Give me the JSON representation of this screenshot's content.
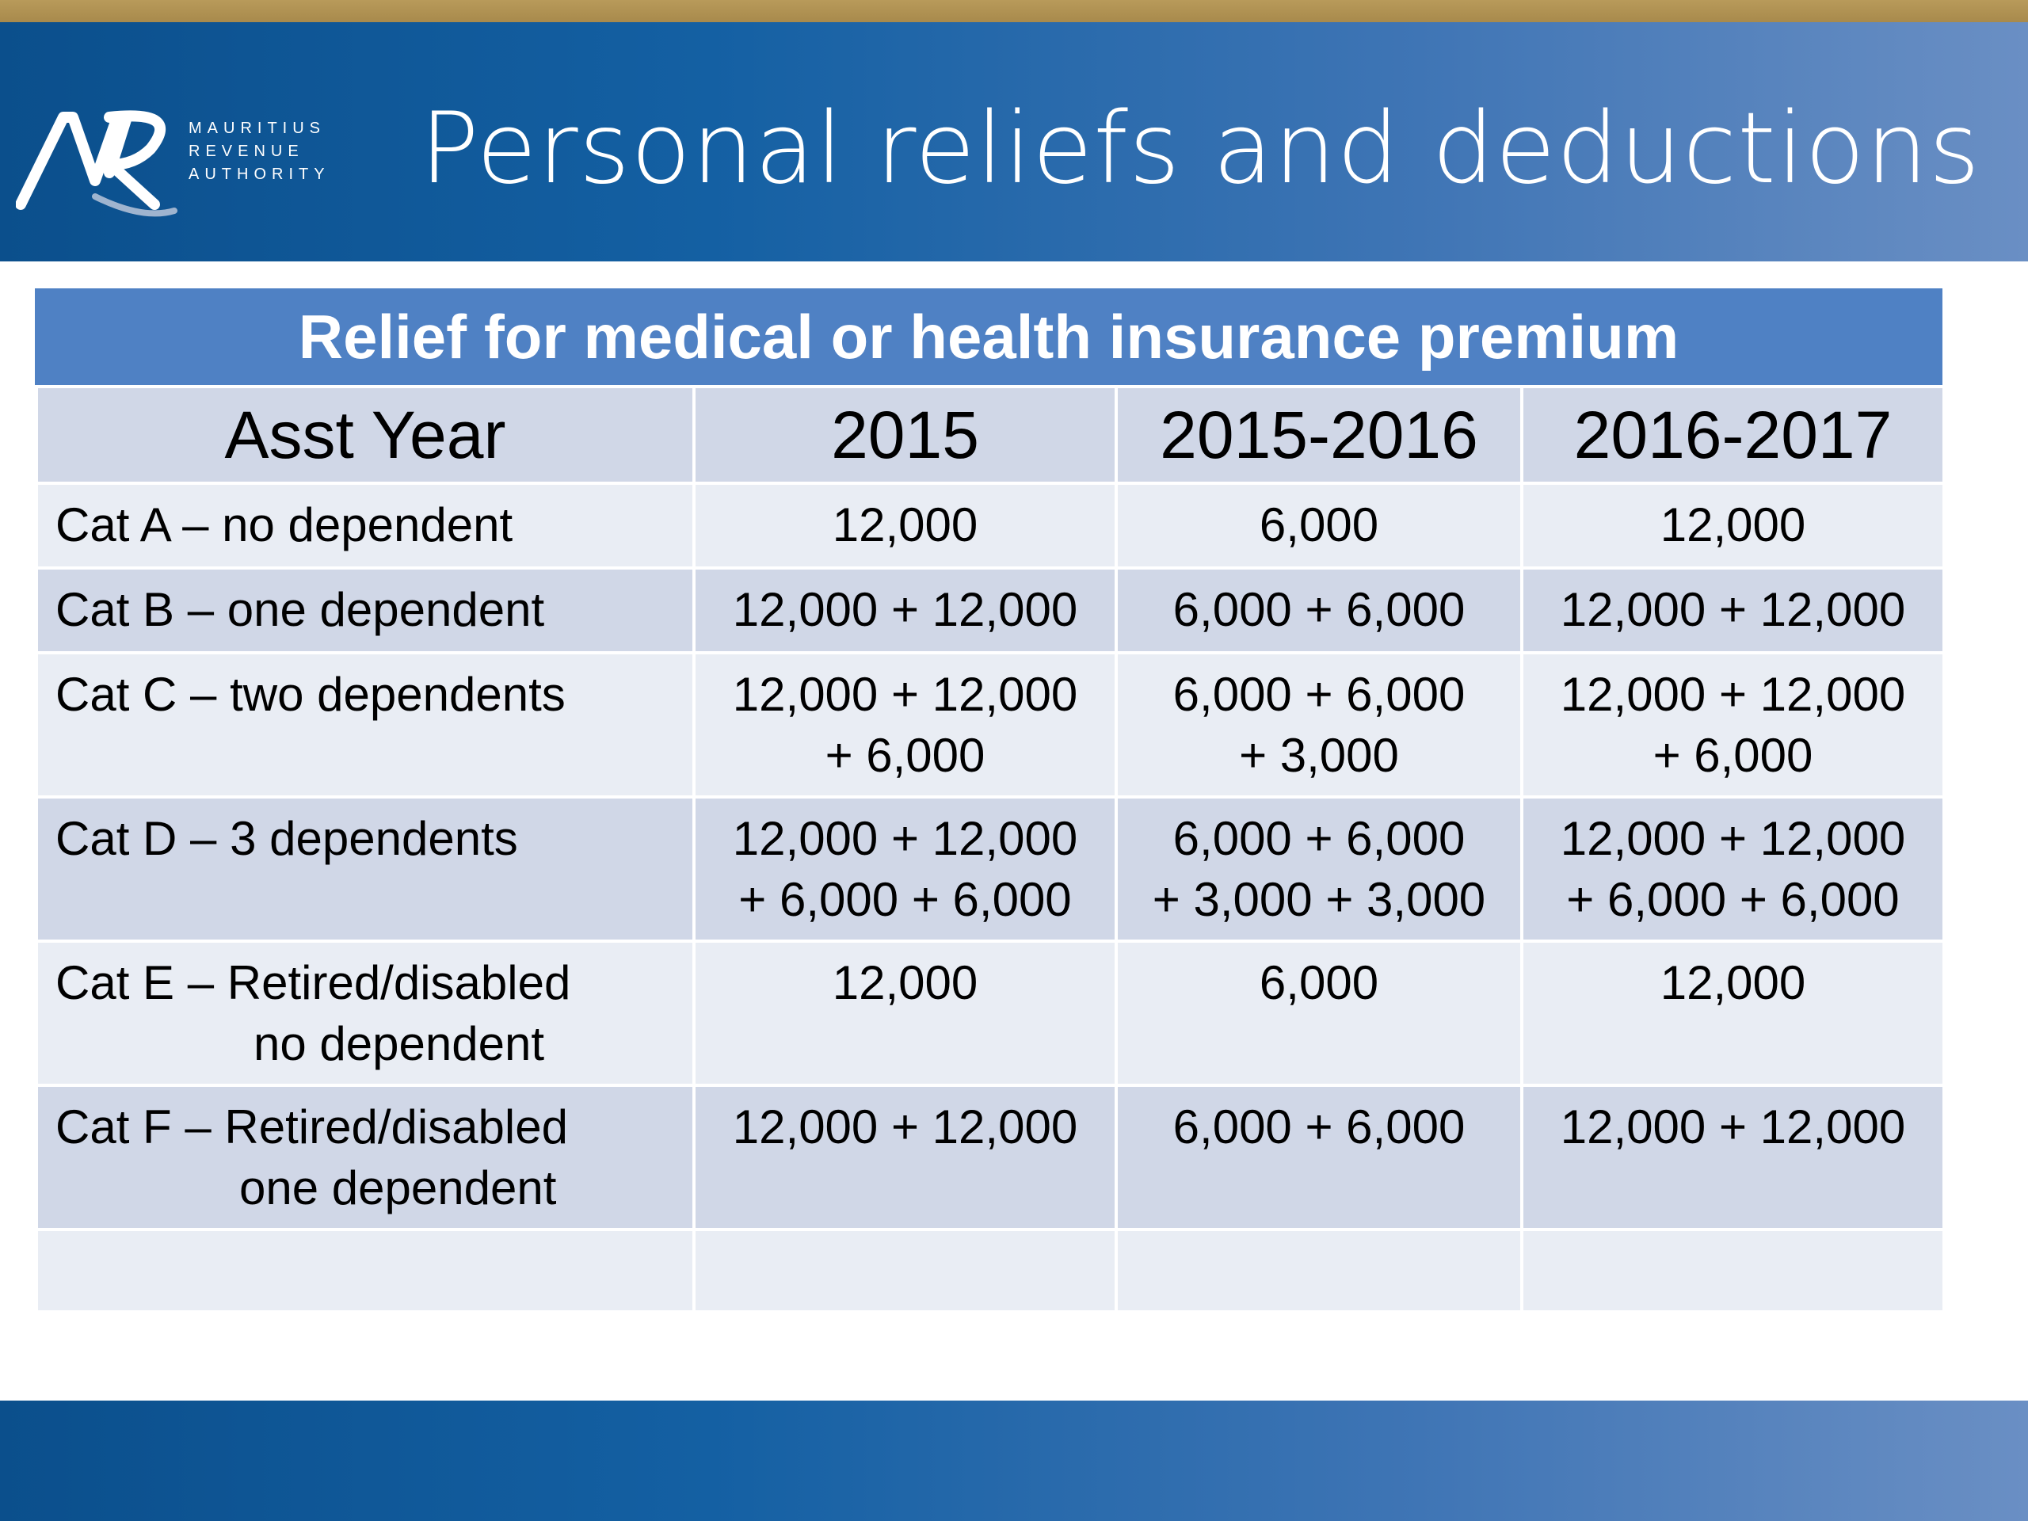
{
  "header": {
    "logo": {
      "icon": "mra-logo-icon",
      "lines": [
        "MAURITIUS",
        "REVENUE",
        "AUTHORITY"
      ]
    },
    "title": "Personal reliefs and deductions"
  },
  "table": {
    "caption": "Relief for medical or health insurance premium",
    "headers": [
      "Asst Year",
      "2015",
      "2015-2016",
      "2016-2017"
    ],
    "rows": [
      {
        "label": [
          "Cat A – no dependent"
        ],
        "cells": [
          [
            "12,000"
          ],
          [
            "6,000"
          ],
          [
            "12,000"
          ]
        ]
      },
      {
        "label": [
          "Cat B – one dependent"
        ],
        "cells": [
          [
            "12,000 + 12,000"
          ],
          [
            "6,000 + 6,000"
          ],
          [
            "12,000 + 12,000"
          ]
        ]
      },
      {
        "label": [
          "Cat C – two dependents"
        ],
        "cells": [
          [
            "12,000 + 12,000",
            "+ 6,000"
          ],
          [
            "6,000 + 6,000",
            "+ 3,000"
          ],
          [
            "12,000 + 12,000",
            "+ 6,000"
          ]
        ]
      },
      {
        "label": [
          "Cat D – 3 dependents"
        ],
        "cells": [
          [
            "12,000 + 12,000",
            "+ 6,000 + 6,000"
          ],
          [
            "6,000 + 6,000",
            "+ 3,000 + 3,000"
          ],
          [
            "12,000 + 12,000",
            "+ 6,000 + 6,000"
          ]
        ]
      },
      {
        "label": [
          "Cat E – Retired/disabled",
          "no dependent"
        ],
        "cells": [
          [
            "12,000"
          ],
          [
            "6,000"
          ],
          [
            "12,000"
          ]
        ]
      },
      {
        "label": [
          "Cat F – Retired/disabled",
          "one dependent"
        ],
        "cells": [
          [
            "12,000 + 12,000"
          ],
          [
            "6,000 + 6,000"
          ],
          [
            "12,000 + 12,000"
          ]
        ]
      },
      {
        "label": [
          ""
        ],
        "cells": [
          [
            ""
          ],
          [
            ""
          ],
          [
            ""
          ]
        ]
      }
    ]
  },
  "colors": {
    "header_gradient_start": "#0b4f8c",
    "header_gradient_end": "#6a8fc4",
    "gold_bar": "#b89a5a",
    "caption_bg": "#4f81c4",
    "row_light": "#e9edf4",
    "row_dark": "#d0d7e7"
  }
}
